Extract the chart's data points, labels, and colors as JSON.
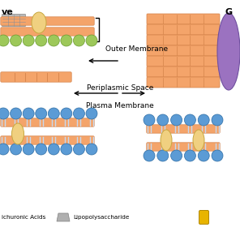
{
  "bg_color": "#ffffff",
  "salmon": "#F4A46A",
  "salmon_dark": "#D4834A",
  "salmon_line": "#C87040",
  "blue": "#5B9BD5",
  "blue_e": "#2E6DA4",
  "green": "#9DC85A",
  "green_e": "#6A9A30",
  "yellow": "#F0D080",
  "yellow_e": "#C8A840",
  "purple": "#9B72C0",
  "purple_e": "#7050A0",
  "gray": "#B0B0B0",
  "gray_e": "#808080",
  "gold": "#E8B400",
  "gold_e": "#B08800",
  "label_outer": "Outer Membrane",
  "label_peri": "Periplasmic Space",
  "label_plasma": "Plasma Membrane",
  "label_teich": "ichuronic Acids",
  "label_lps": "Lipopolysaccharide"
}
